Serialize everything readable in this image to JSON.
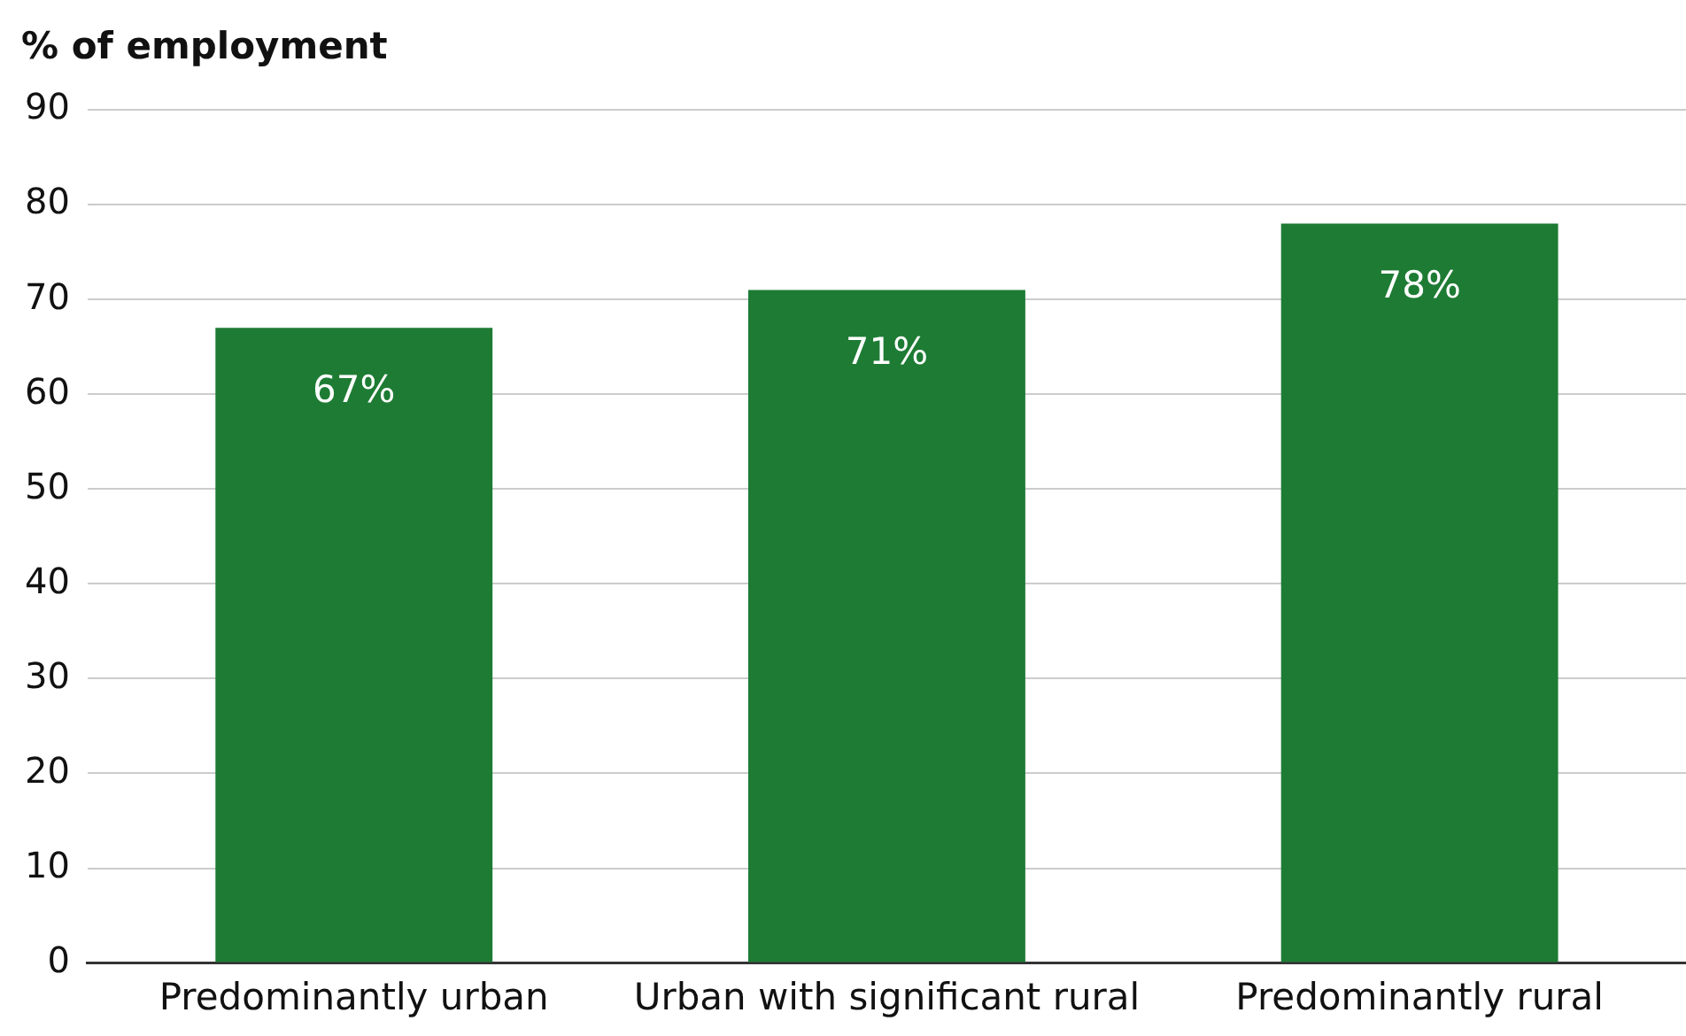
{
  "chart_data": {
    "type": "bar",
    "ylabel": "% of employment",
    "categories": [
      "Predominantly urban",
      "Urban with significant rural",
      "Predominantly rural"
    ],
    "values": [
      67,
      71,
      78
    ],
    "value_labels": [
      "67%",
      "71%",
      "78%"
    ],
    "color": "#1e7b34",
    "ylim": [
      0,
      90
    ],
    "yticks": [
      0,
      10,
      20,
      30,
      40,
      50,
      60,
      70,
      80,
      90
    ],
    "grid": "y"
  }
}
